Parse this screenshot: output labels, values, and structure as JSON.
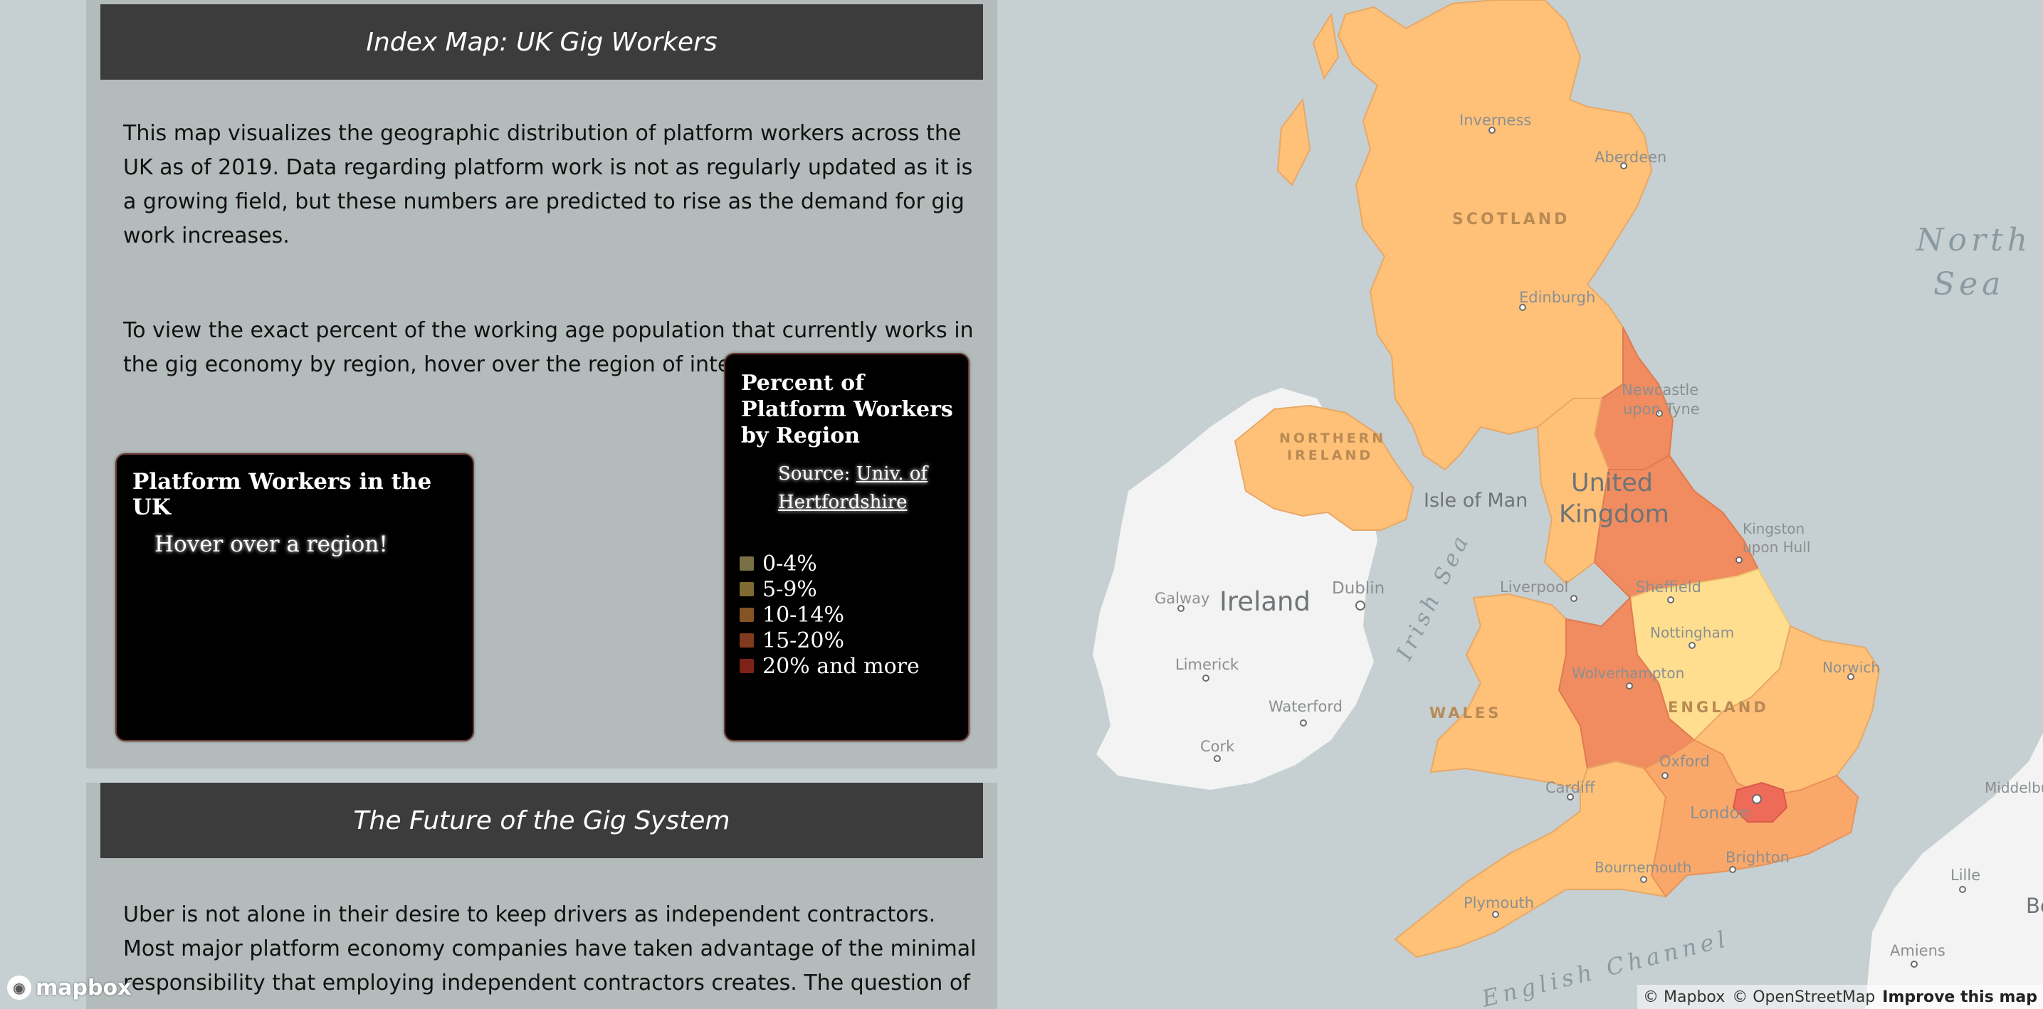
{
  "map": {
    "places": {
      "inverness": "Inverness",
      "aberdeen": "Aberdeen",
      "scotland": "SCOTLAND",
      "edinburgh": "Edinburgh",
      "newcastle_1": "Newcastle",
      "newcastle_2": "upon Tyne",
      "northern_ireland_1": "NORTHERN",
      "northern_ireland_2": "IRELAND",
      "isle_of_man": "Isle of Man",
      "united": "United",
      "kingdom": "Kingdom",
      "kingston_1": "Kingston",
      "kingston_2": "upon Hull",
      "liverpool": "Liverpool",
      "sheffield": "Sheffield",
      "ireland": "Ireland",
      "dublin": "Dublin",
      "galway": "Galway",
      "irish_sea": "Irish Sea",
      "nottingham": "Nottingham",
      "norwich": "Norwich",
      "wolverhampton": "Wolverhampton",
      "limerick": "Limerick",
      "waterford": "Waterford",
      "wales": "WALES",
      "england": "ENGLAND",
      "cork": "Cork",
      "oxford": "Oxford",
      "cardiff": "Cardiff",
      "london": "London",
      "middelburg": "Middelburg",
      "brighton": "Brighton",
      "bournemouth": "Bournemouth",
      "plymouth": "Plymouth",
      "lille": "Lille",
      "be": "Be",
      "amiens": "Amiens",
      "english_channel": "English Channel",
      "north_1": "North",
      "north_2": "Sea"
    },
    "fill_colors": {
      "low": "#ffc178",
      "mid": "#f9a86a",
      "high": "#f08c5f",
      "top": "#ee6b5a",
      "pale": "#ffdf8f"
    }
  },
  "intro": {
    "header": "Index Map: UK Gig Workers",
    "paragraph1": "This map visualizes the geographic distribution of platform workers across the UK as of 2019. Data regarding platform work is not as regularly updated as it is a growing field, but these numbers are predicted to rise as the demand for gig work increases.",
    "paragraph2": "To view the exact percent of the working age population that currently works in the gig economy by region, hover over the region of interest."
  },
  "future": {
    "header": "The Future of the Gig System",
    "paragraph": "Uber is not alone in their desire to keep drivers as independent contractors. Most major platform economy companies have taken advantage of the minimal responsibility that employing independent contractors creates. The question of"
  },
  "info_box": {
    "title": "Platform Workers in the UK",
    "hint": "Hover over a region!"
  },
  "legend": {
    "title": "Percent of Platform Workers by Region",
    "source_prefix": "Source: ",
    "source_link": "Univ. of Hertfordshire",
    "items": [
      {
        "label": "0-4%",
        "color": "#7a7046"
      },
      {
        "label": "5-9%",
        "color": "#7f6a32"
      },
      {
        "label": "10-14%",
        "color": "#845425"
      },
      {
        "label": "15-20%",
        "color": "#823a1f"
      },
      {
        "label": "20% and more",
        "color": "#7d2218"
      }
    ]
  },
  "attribution": {
    "logo": "mapbox",
    "mapbox": "© Mapbox",
    "osm": "© OpenStreetMap",
    "improve": "Improve this map"
  }
}
